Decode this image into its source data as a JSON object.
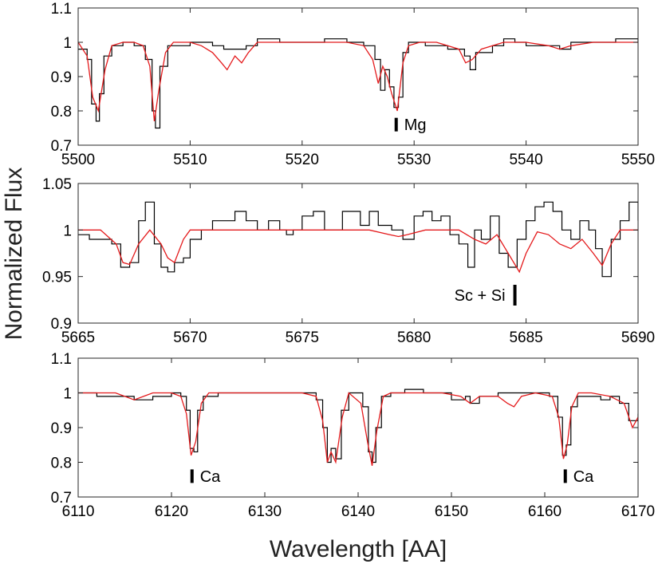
{
  "figure": {
    "ylabel": "Normalized Flux",
    "xlabel": "Wavelength [AA]"
  },
  "chart_data": [
    {
      "type": "line",
      "panel": "top",
      "xlim": [
        5500,
        5550
      ],
      "ylim": [
        0.7,
        1.1
      ],
      "xticks": [
        5500,
        5510,
        5520,
        5530,
        5540,
        5550
      ],
      "yticks": [
        0.7,
        0.8,
        0.9,
        1,
        1.1
      ],
      "grid": false,
      "annotations": [
        {
          "text": "Mg",
          "x": 5528.4,
          "y": 0.76
        }
      ],
      "series": [
        {
          "style": "step",
          "color": "#000000",
          "x": [
            5500,
            5500.8,
            5501.2,
            5501.6,
            5501.9,
            5502.3,
            5503,
            5504,
            5505,
            5506,
            5506.6,
            5506.9,
            5507.3,
            5508,
            5510,
            5512,
            5513,
            5514,
            5515,
            5516,
            5518,
            5520,
            5522,
            5524,
            5525.5,
            5526.5,
            5527,
            5527.4,
            5527.8,
            5528.2,
            5528.6,
            5529,
            5529.5,
            5531,
            5533,
            5534.5,
            5535,
            5535.5,
            5537,
            5538,
            5539,
            5540,
            5542,
            5543,
            5544,
            5546,
            5548,
            5550
          ],
          "y": [
            0.98,
            0.95,
            0.82,
            0.77,
            0.85,
            0.96,
            0.99,
            1.0,
            0.99,
            0.95,
            0.8,
            0.75,
            0.93,
            0.99,
            1.0,
            0.99,
            0.98,
            0.98,
            0.99,
            1.01,
            1.0,
            1.0,
            1.01,
            1.0,
            0.99,
            0.95,
            0.86,
            0.92,
            0.87,
            0.81,
            0.84,
            0.97,
            1.0,
            0.99,
            0.98,
            0.96,
            0.92,
            0.97,
            0.99,
            1.01,
            1.0,
            0.99,
            0.99,
            0.98,
            1.0,
            1.0,
            1.01,
            1.0
          ]
        },
        {
          "style": "line",
          "color": "#e41a1c",
          "x": [
            5500,
            5500.8,
            5501.3,
            5501.8,
            5502.4,
            5503,
            5504,
            5505,
            5505.8,
            5506.4,
            5506.8,
            5507.2,
            5507.8,
            5508.5,
            5510,
            5511,
            5512,
            5512.8,
            5513.3,
            5514,
            5514.6,
            5515.2,
            5516,
            5518,
            5520,
            5522,
            5524,
            5525.5,
            5526.3,
            5526.8,
            5527.2,
            5527.6,
            5528,
            5528.5,
            5529,
            5529.5,
            5530.5,
            5532,
            5534,
            5534.6,
            5535.2,
            5536,
            5538,
            5540,
            5542,
            5543,
            5544,
            5546,
            5548,
            5550
          ],
          "y": [
            1.0,
            0.96,
            0.84,
            0.8,
            0.92,
            0.99,
            1.0,
            1.0,
            0.99,
            0.93,
            0.77,
            0.86,
            0.97,
            1.0,
            1.0,
            0.99,
            0.97,
            0.94,
            0.92,
            0.96,
            0.94,
            0.97,
            1.0,
            1.0,
            1.0,
            1.0,
            1.0,
            0.99,
            0.95,
            0.88,
            0.93,
            0.9,
            0.85,
            0.8,
            0.94,
            0.99,
            1.0,
            1.0,
            0.98,
            0.94,
            0.95,
            0.98,
            1.0,
            1.0,
            0.99,
            0.98,
            0.99,
            1.0,
            1.0,
            1.0
          ]
        }
      ]
    },
    {
      "type": "line",
      "panel": "middle",
      "xlim": [
        5665,
        5690
      ],
      "ylim": [
        0.9,
        1.05
      ],
      "xticks": [
        5665,
        5670,
        5675,
        5680,
        5685,
        5690
      ],
      "yticks": [
        0.9,
        0.95,
        1,
        1.05
      ],
      "grid": false,
      "annotations": [
        {
          "text": "Sc + Si",
          "x": 5684.5,
          "y": 0.93
        }
      ],
      "series": [
        {
          "style": "step",
          "color": "#000000",
          "x": [
            5665,
            5665.5,
            5666,
            5666.5,
            5666.9,
            5667.3,
            5667.7,
            5668,
            5668.4,
            5668.7,
            5669,
            5669.3,
            5669.7,
            5670,
            5670.5,
            5671,
            5671.5,
            5672,
            5672.5,
            5673,
            5673.5,
            5674,
            5674.3,
            5674.6,
            5675,
            5675.5,
            5676,
            5676.5,
            5676.8,
            5677.2,
            5677.6,
            5678,
            5678.4,
            5679,
            5679.5,
            5680,
            5680.4,
            5680.8,
            5681.2,
            5681.6,
            5682,
            5682.4,
            5682.7,
            5683,
            5683.4,
            5683.8,
            5684.2,
            5684.6,
            5685,
            5685.4,
            5685.8,
            5686.2,
            5686.6,
            5687,
            5687.4,
            5687.8,
            5688.1,
            5688.4,
            5688.8,
            5689.2,
            5689.6,
            5690
          ],
          "y": [
            0.995,
            0.99,
            0.99,
            0.985,
            0.96,
            0.965,
            1.01,
            1.03,
            0.985,
            0.96,
            0.955,
            0.965,
            0.97,
            0.99,
            1.0,
            1.01,
            1.01,
            1.02,
            1.01,
            1.0,
            1.01,
            1.0,
            0.995,
            1.0,
            1.015,
            1.02,
            1.0,
            1.0,
            1.02,
            1.02,
            1.005,
            1.02,
            1.005,
            1.0,
            0.99,
            1.015,
            1.02,
            1.01,
            1.015,
            0.995,
            0.985,
            0.96,
            1.0,
            0.99,
            1.015,
            0.975,
            0.96,
            0.99,
            1.01,
            1.025,
            1.03,
            1.02,
            1.0,
            0.99,
            1.01,
            1.0,
            0.98,
            0.95,
            0.99,
            1.01,
            1.03,
            1.01
          ]
        },
        {
          "style": "line",
          "color": "#e41a1c",
          "x": [
            5665,
            5666,
            5666.7,
            5667,
            5667.3,
            5667.7,
            5668.2,
            5668.7,
            5669,
            5669.3,
            5669.7,
            5670,
            5671,
            5673,
            5676,
            5678,
            5678.9,
            5679.3,
            5679.7,
            5680.5,
            5682,
            5682.7,
            5683.2,
            5683.7,
            5684.2,
            5684.7,
            5685,
            5685.5,
            5686,
            5686.5,
            5687,
            5687.5,
            5688,
            5688.4,
            5688.8,
            5689.2,
            5690
          ],
          "y": [
            1.0,
            1.0,
            0.985,
            0.965,
            0.963,
            0.985,
            1.0,
            0.985,
            0.97,
            0.965,
            0.99,
            1.0,
            1.0,
            1.0,
            1.0,
            1.0,
            0.995,
            0.993,
            0.995,
            1.0,
            1.0,
            0.99,
            0.985,
            0.995,
            0.975,
            0.955,
            0.975,
            0.998,
            0.995,
            0.985,
            0.98,
            0.99,
            0.975,
            0.962,
            0.985,
            1.0,
            1.0
          ]
        }
      ]
    },
    {
      "type": "line",
      "panel": "bottom",
      "xlim": [
        6110,
        6170
      ],
      "ylim": [
        0.7,
        1.1
      ],
      "xticks": [
        6110,
        6120,
        6130,
        6140,
        6150,
        6160,
        6170
      ],
      "yticks": [
        0.7,
        0.8,
        0.9,
        1,
        1.1
      ],
      "grid": false,
      "annotations": [
        {
          "text": "Ca",
          "x": 6122.2,
          "y": 0.76
        },
        {
          "text": "Ca",
          "x": 6162.2,
          "y": 0.76
        }
      ],
      "series": [
        {
          "style": "step",
          "color": "#000000",
          "x": [
            6110,
            6112,
            6114,
            6116,
            6118,
            6120,
            6121,
            6121.6,
            6122,
            6122.4,
            6122.8,
            6123.4,
            6125,
            6128,
            6130,
            6132,
            6134,
            6135.5,
            6136.2,
            6136.7,
            6137.1,
            6137.6,
            6138.2,
            6139,
            6140.5,
            6141.1,
            6141.5,
            6141.9,
            6142.5,
            6143.5,
            6145,
            6147,
            6149,
            6150,
            6151.5,
            6152,
            6153,
            6155,
            6157,
            6159,
            6160.5,
            6161.4,
            6161.9,
            6162.3,
            6162.8,
            6163.5,
            6165,
            6166,
            6167,
            6168,
            6169,
            6170
          ],
          "y": [
            1.0,
            0.99,
            0.99,
            0.98,
            0.99,
            1.0,
            0.99,
            0.95,
            0.84,
            0.83,
            0.95,
            0.99,
            1.0,
            1.0,
            1.0,
            1.0,
            1.0,
            0.98,
            0.9,
            0.8,
            0.84,
            0.81,
            0.95,
            1.0,
            0.96,
            0.83,
            0.8,
            0.9,
            0.99,
            1.0,
            1.01,
            1.0,
            1.0,
            0.98,
            0.99,
            0.97,
            0.99,
            1.0,
            1.0,
            1.0,
            0.99,
            0.93,
            0.82,
            0.85,
            0.96,
            0.99,
            0.99,
            0.98,
            0.99,
            0.97,
            0.92,
            0.94
          ]
        },
        {
          "style": "line",
          "color": "#e41a1c",
          "x": [
            6110,
            6112,
            6114,
            6116,
            6117,
            6118,
            6120,
            6121,
            6121.6,
            6122.1,
            6122.6,
            6123.2,
            6124,
            6126,
            6130,
            6134,
            6135.5,
            6136.2,
            6136.7,
            6137.1,
            6137.6,
            6138.3,
            6139,
            6140.3,
            6141,
            6141.5,
            6142,
            6142.7,
            6143.5,
            6146,
            6149,
            6151,
            6152,
            6153,
            6155,
            6156,
            6156.7,
            6157.5,
            6159,
            6160.8,
            6161.5,
            6162,
            6162.4,
            6162.9,
            6163.6,
            6165,
            6167,
            6168.5,
            6169.4,
            6170
          ],
          "y": [
            1.0,
            1.0,
            1.0,
            0.98,
            0.99,
            1.0,
            1.0,
            0.99,
            0.94,
            0.82,
            0.86,
            0.97,
            1.0,
            1.0,
            1.0,
            1.0,
            0.99,
            0.92,
            0.8,
            0.83,
            0.8,
            0.93,
            1.0,
            0.97,
            0.86,
            0.79,
            0.89,
            0.99,
            1.0,
            1.0,
            1.0,
            0.99,
            0.97,
            0.99,
            0.99,
            0.97,
            0.96,
            0.99,
            1.0,
            0.99,
            0.93,
            0.81,
            0.85,
            0.96,
            1.0,
            1.0,
            0.99,
            0.97,
            0.9,
            0.93
          ]
        }
      ]
    }
  ]
}
